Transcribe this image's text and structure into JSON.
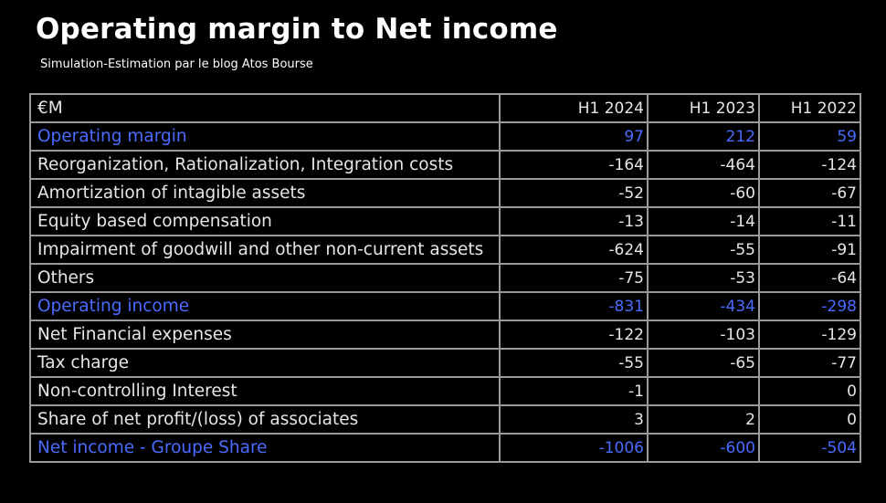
{
  "title": "Operating margin to Net income",
  "subtitle": "Simulation-Estimation par le blog Atos Bourse",
  "table": {
    "header": [
      "€M",
      "H1 2024",
      "H1 2023",
      "H1 2022"
    ],
    "rows": [
      {
        "label": "Operating margin",
        "values": [
          "97",
          "212",
          "59"
        ],
        "highlight": true
      },
      {
        "label": "Reorganization, Rationalization, Integration costs",
        "values": [
          "-164",
          "-464",
          "-124"
        ],
        "highlight": false
      },
      {
        "label": "Amortization of intagible assets",
        "values": [
          "-52",
          "-60",
          "-67"
        ],
        "highlight": false
      },
      {
        "label": "Equity based compensation",
        "values": [
          "-13",
          "-14",
          "-11"
        ],
        "highlight": false
      },
      {
        "label": "Impairment of goodwill and other non-current assets",
        "values": [
          "-624",
          "-55",
          "-91"
        ],
        "highlight": false
      },
      {
        "label": "Others",
        "values": [
          "-75",
          "-53",
          "-64"
        ],
        "highlight": false
      },
      {
        "label": "Operating income",
        "values": [
          "-831",
          "-434",
          "-298"
        ],
        "highlight": true
      },
      {
        "label": "Net Financial expenses",
        "values": [
          "-122",
          "-103",
          "-129"
        ],
        "highlight": false
      },
      {
        "label": "Tax charge",
        "values": [
          "-55",
          "-65",
          "-77"
        ],
        "highlight": false
      },
      {
        "label": "Non-controlling Interest",
        "values": [
          "-1",
          "",
          "0"
        ],
        "highlight": false
      },
      {
        "label": "Share of net profit/(loss) of associates",
        "values": [
          "3",
          "2",
          "0"
        ],
        "highlight": false
      },
      {
        "label": "Net income - Groupe Share",
        "values": [
          "-1006",
          "-600",
          "-504"
        ],
        "highlight": true
      }
    ]
  },
  "colors": {
    "background": "#000000",
    "text": "#e6e6e6",
    "highlight": "#4a6bff",
    "grid": "#9a9a9a"
  }
}
